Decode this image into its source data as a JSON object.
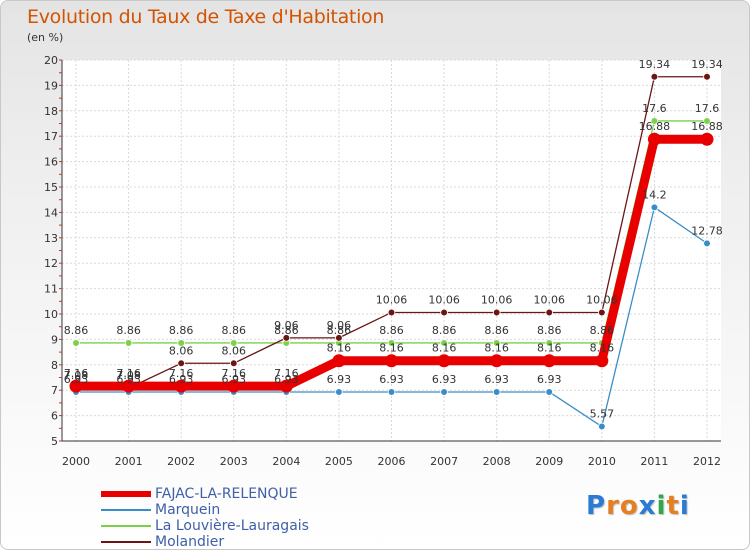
{
  "title": "Evolution du Taux de Taxe d'Habitation",
  "unit_label": "(en %)",
  "logo": {
    "letters": [
      "P",
      "r",
      "o",
      "x",
      "i",
      "t",
      "i"
    ],
    "colors": [
      "#2a7bd6",
      "#e67e22",
      "#e67e22",
      "#2a7bd6",
      "#2ea84a",
      "#e67e22",
      "#2a7bd6"
    ]
  },
  "chart_data": {
    "type": "line",
    "categories": [
      "2000",
      "2001",
      "2002",
      "2003",
      "2004",
      "2005",
      "2006",
      "2007",
      "2008",
      "2009",
      "2010",
      "2011",
      "2012"
    ],
    "ylim": [
      5,
      20
    ],
    "yticks": [
      5,
      6,
      7,
      8,
      9,
      10,
      11,
      12,
      13,
      14,
      15,
      16,
      17,
      18,
      19,
      20
    ],
    "grid": true,
    "legend_position": "bottom-left",
    "series": [
      {
        "name": "FAJAC-LA-RELENQUE",
        "color": "#e80000",
        "values": [
          7.16,
          7.16,
          7.16,
          7.16,
          7.16,
          8.16,
          8.16,
          8.16,
          8.16,
          8.16,
          8.16,
          16.88,
          16.88
        ],
        "labels": [
          "7.16",
          "7.16",
          "7.16",
          "7.16",
          "7.16",
          "8.16",
          "8.16",
          "8.16",
          "8.16",
          "8.16",
          "8.16",
          "16.88",
          "16.88"
        ]
      },
      {
        "name": "Marquein",
        "color": "#3a8ec8",
        "values": [
          6.93,
          6.93,
          6.93,
          6.93,
          6.93,
          6.93,
          6.93,
          6.93,
          6.93,
          6.93,
          5.57,
          14.2,
          12.78
        ],
        "labels": [
          "6.93",
          "6.93",
          "6.93",
          "6.93",
          "6.93",
          "6.93",
          "6.93",
          "6.93",
          "6.93",
          "6.93",
          "5.57",
          "14.2",
          "12.78"
        ]
      },
      {
        "name": "La Louvière-Lauragais",
        "color": "#7cd04a",
        "values": [
          8.86,
          8.86,
          8.86,
          8.86,
          8.86,
          8.86,
          8.86,
          8.86,
          8.86,
          8.86,
          8.86,
          17.6,
          17.6
        ],
        "labels": [
          "8.86",
          "8.86",
          "8.86",
          "8.86",
          "8.86",
          "8.86",
          "8.86",
          "8.86",
          "8.86",
          "8.86",
          "8.86",
          "17.6",
          "17.6"
        ]
      },
      {
        "name": "Molandier",
        "color": "#6b1515",
        "values": [
          7.08,
          7.08,
          8.06,
          8.06,
          9.06,
          9.06,
          10.06,
          10.06,
          10.06,
          10.06,
          10.06,
          19.34,
          19.34
        ],
        "labels": [
          "7.08",
          "7.08",
          "8.06",
          "8.06",
          "9.06",
          "9.06",
          "10.06",
          "10.06",
          "10.06",
          "10.06",
          "10.06",
          "19.34",
          "19.34"
        ]
      }
    ]
  }
}
